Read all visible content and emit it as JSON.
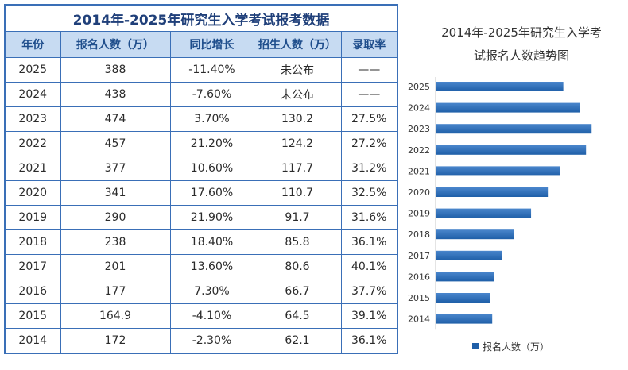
{
  "table": {
    "title": "2014年-2025年研究生入学考试报考数据",
    "headers": [
      "年份",
      "报名人数（万）",
      "同比增长",
      "招生人数（万）",
      "录取率"
    ],
    "rows": [
      [
        "2025",
        "388",
        "-11.40%",
        "未公布",
        "——"
      ],
      [
        "2024",
        "438",
        "-7.60%",
        "未公布",
        "——"
      ],
      [
        "2023",
        "474",
        "3.70%",
        "130.2",
        "27.5%"
      ],
      [
        "2022",
        "457",
        "21.20%",
        "124.2",
        "27.2%"
      ],
      [
        "2021",
        "377",
        "10.60%",
        "117.7",
        "31.2%"
      ],
      [
        "2020",
        "341",
        "17.60%",
        "110.7",
        "32.5%"
      ],
      [
        "2019",
        "290",
        "21.90%",
        "91.7",
        "31.6%"
      ],
      [
        "2018",
        "238",
        "18.40%",
        "85.8",
        "36.1%"
      ],
      [
        "2017",
        "201",
        "13.60%",
        "80.6",
        "40.1%"
      ],
      [
        "2016",
        "177",
        "7.30%",
        "66.7",
        "37.7%"
      ],
      [
        "2015",
        "164.9",
        "-4.10%",
        "64.5",
        "39.1%"
      ],
      [
        "2014",
        "172",
        "-2.30%",
        "62.1",
        "36.1%"
      ]
    ]
  },
  "chart_data": {
    "type": "bar",
    "orientation": "horizontal",
    "title_lines": [
      "2014年-2025年研究生入学考",
      "试报名人数趋势图"
    ],
    "categories": [
      "2025",
      "2024",
      "2023",
      "2022",
      "2021",
      "2020",
      "2019",
      "2018",
      "2017",
      "2016",
      "2015",
      "2014"
    ],
    "series": [
      {
        "name": "报名人数（万）",
        "values": [
          388,
          438,
          474,
          457,
          377,
          341,
          290,
          238,
          201,
          177,
          164.9,
          172
        ]
      }
    ],
    "xlim": [
      0,
      500
    ],
    "grid": false,
    "legend": "bottom",
    "colors": {
      "bar": "#1f5fa8",
      "bar_light": "#4a86cc",
      "table_border": "#3a6fb7",
      "header_bg": "#c7dbf2"
    }
  }
}
